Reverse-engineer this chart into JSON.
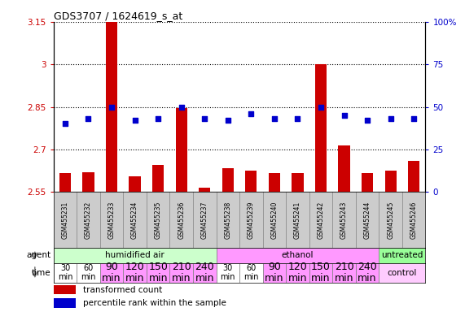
{
  "title": "GDS3707 / 1624619_s_at",
  "samples": [
    "GSM455231",
    "GSM455232",
    "GSM455233",
    "GSM455234",
    "GSM455235",
    "GSM455236",
    "GSM455237",
    "GSM455238",
    "GSM455239",
    "GSM455240",
    "GSM455241",
    "GSM455242",
    "GSM455243",
    "GSM455244",
    "GSM455245",
    "GSM455246"
  ],
  "transformed_count": [
    2.615,
    2.62,
    3.16,
    2.605,
    2.645,
    2.845,
    2.565,
    2.635,
    2.625,
    2.615,
    2.615,
    3.0,
    2.715,
    2.615,
    2.625,
    2.66
  ],
  "percentile_rank": [
    40,
    43,
    50,
    42,
    43,
    50,
    43,
    42,
    46,
    43,
    43,
    50,
    45,
    42,
    43,
    43
  ],
  "ylim_left": [
    2.55,
    3.15
  ],
  "ylim_right": [
    0,
    100
  ],
  "yticks_left": [
    2.55,
    2.7,
    2.85,
    3.0,
    3.15
  ],
  "yticks_right": [
    0,
    25,
    50,
    75,
    100
  ],
  "ytick_labels_left": [
    "2.55",
    "2.7",
    "2.85",
    "3",
    "3.15"
  ],
  "ytick_labels_right": [
    "0",
    "25",
    "50",
    "75",
    "100%"
  ],
  "agent_groups": [
    {
      "label": "humidified air",
      "start": 0,
      "end": 7,
      "color": "#ccffcc"
    },
    {
      "label": "ethanol",
      "start": 7,
      "end": 14,
      "color": "#ff99ff"
    },
    {
      "label": "untreated",
      "start": 14,
      "end": 16,
      "color": "#99ff99"
    }
  ],
  "time_labels": [
    "30\nmin",
    "60\nmin",
    "90\nmin",
    "120\nmin",
    "150\nmin",
    "210\nmin",
    "240\nmin",
    "30\nmin",
    "60\nmin",
    "90\nmin",
    "120\nmin",
    "150\nmin",
    "210\nmin",
    "240\nmin"
  ],
  "time_colors": [
    "#ffffff",
    "#ffffff",
    "#ff99ff",
    "#ff99ff",
    "#ff99ff",
    "#ff99ff",
    "#ff99ff",
    "#ffffff",
    "#ffffff",
    "#ff99ff",
    "#ff99ff",
    "#ff99ff",
    "#ff99ff",
    "#ff99ff"
  ],
  "time_fontsize_large": [
    7,
    7,
    9,
    9,
    9,
    9,
    9,
    7,
    7,
    9,
    9,
    9,
    9,
    9
  ],
  "control_color": "#ffccff",
  "bar_color": "#cc0000",
  "dot_color": "#0000cc",
  "legend_bar_label": "transformed count",
  "legend_dot_label": "percentile rank within the sample",
  "bar_width": 0.5,
  "sample_box_color": "#cccccc",
  "left_col_color": "#e8e8e8"
}
